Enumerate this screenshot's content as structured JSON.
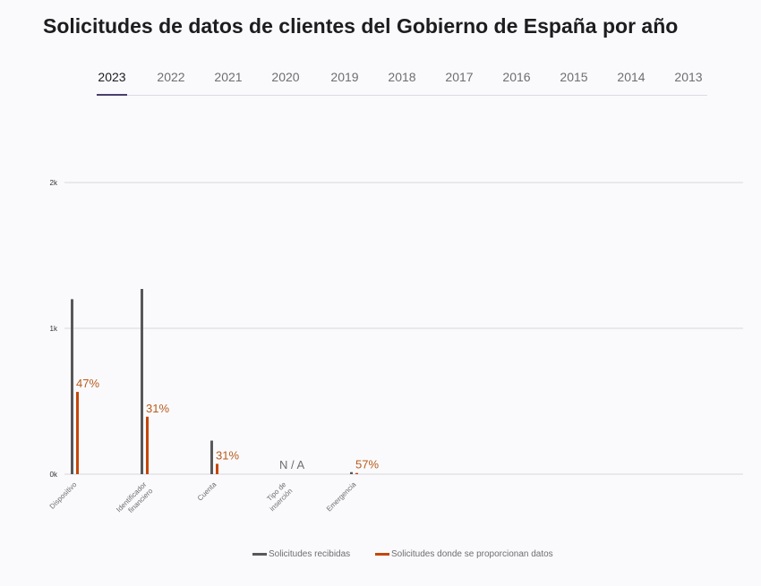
{
  "page": {
    "title": "Solicitudes de datos de clientes del Gobierno de España por año"
  },
  "tabs": [
    {
      "label": "2023",
      "active": true
    },
    {
      "label": "2022",
      "active": false
    },
    {
      "label": "2021",
      "active": false
    },
    {
      "label": "2020",
      "active": false
    },
    {
      "label": "2019",
      "active": false
    },
    {
      "label": "2018",
      "active": false
    },
    {
      "label": "2017",
      "active": false
    },
    {
      "label": "2016",
      "active": false
    },
    {
      "label": "2015",
      "active": false
    },
    {
      "label": "2014",
      "active": false
    },
    {
      "label": "2013",
      "active": false
    }
  ],
  "colors": {
    "received": "#58585a",
    "provided": "#c4460a",
    "percent_text": "#b85c1c",
    "grid": "#d8d8dd",
    "axis_text": "#333333",
    "category_text": "#6e6e73",
    "na_text": "#6e6e73"
  },
  "chart_data": {
    "type": "bar",
    "categories": [
      "Dispositivo",
      "Identificador financiero",
      "Cuenta",
      "Tipo de inserción",
      "Emergencia"
    ],
    "series": [
      {
        "name": "Solicitudes recibidas",
        "values": [
          1200,
          1270,
          230,
          null,
          14
        ]
      },
      {
        "name": "Solicitudes donde se proporcionan datos",
        "values": [
          564,
          394,
          71,
          null,
          8
        ]
      }
    ],
    "percent_labels": [
      "47%",
      "31%",
      "31%",
      "N / A",
      "57%"
    ],
    "y_ticks": [
      "0k",
      "1k",
      "2k"
    ],
    "ylim": [
      0,
      2000
    ],
    "grid": true,
    "legend_position": "bottom"
  }
}
